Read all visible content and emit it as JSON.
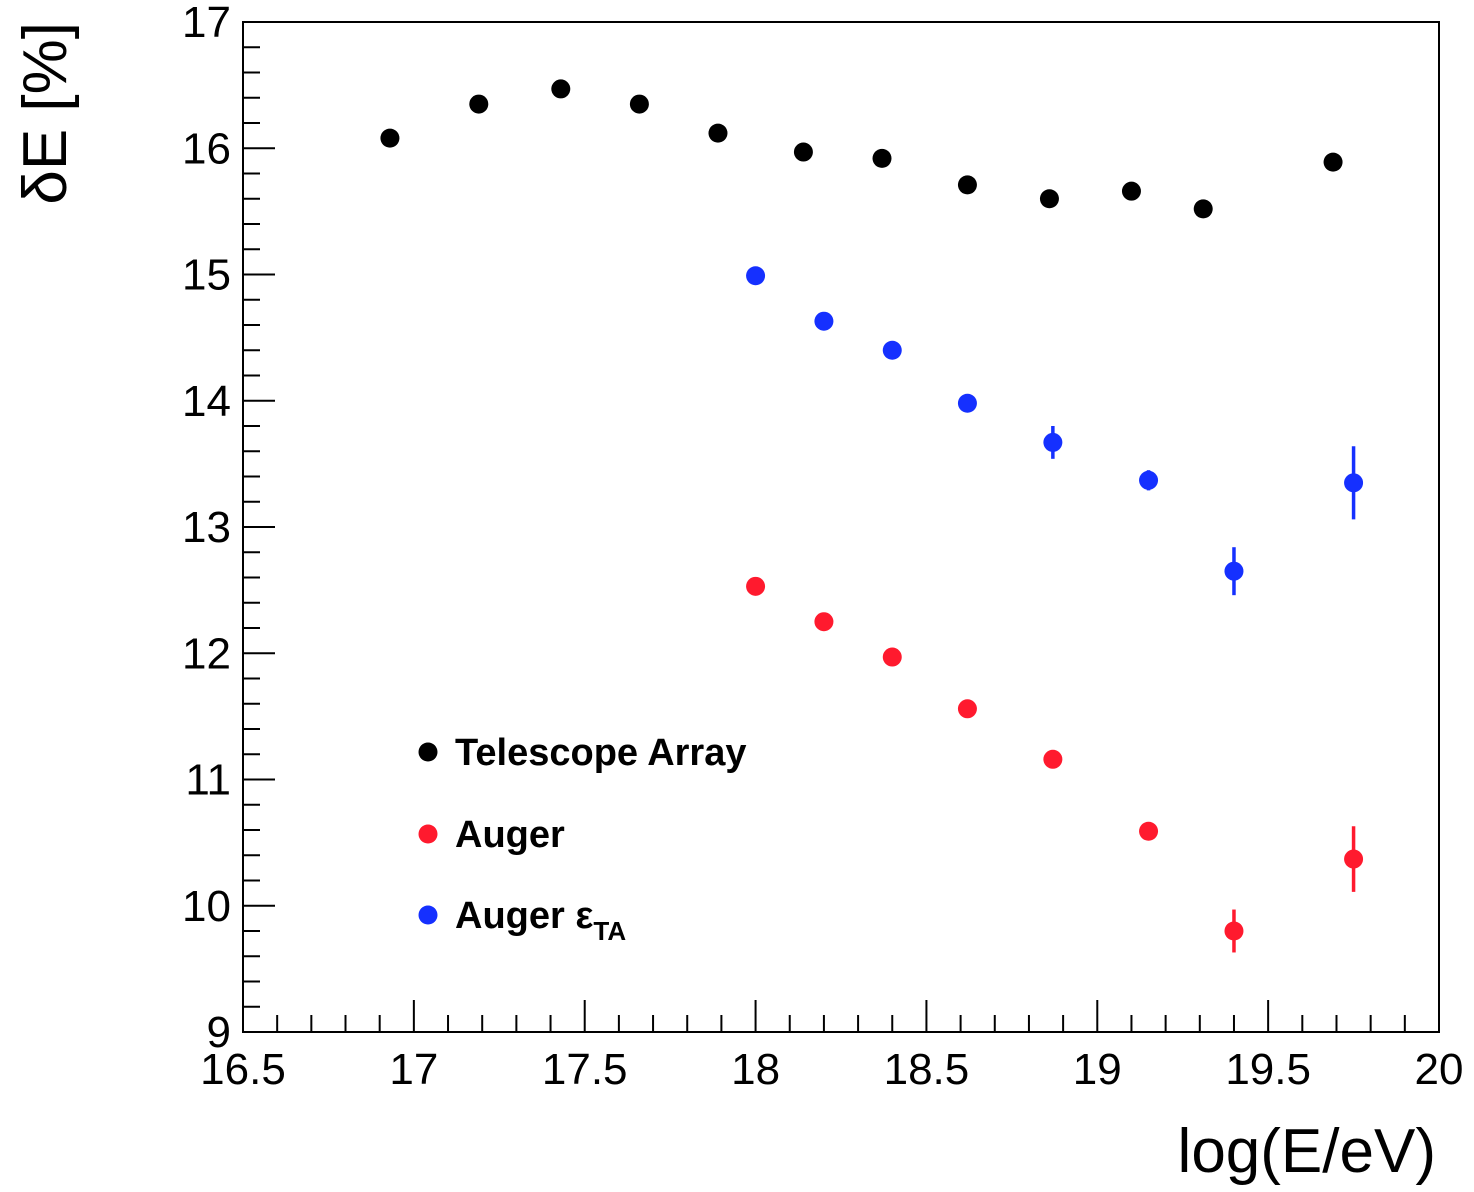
{
  "chart_data": {
    "type": "scatter",
    "title": "",
    "xlabel": "log(E/eV)",
    "ylabel": "δE [%]",
    "xlim": [
      16.5,
      20
    ],
    "ylim": [
      9,
      17
    ],
    "x_tick_labels": [
      "16.5",
      "17",
      "17.5",
      "18",
      "18.5",
      "19",
      "19.5",
      "20"
    ],
    "y_tick_labels": [
      "9",
      "10",
      "11",
      "12",
      "13",
      "14",
      "15",
      "16",
      "17"
    ],
    "grid": false,
    "legend_position": "bottom-left",
    "series": [
      {
        "name": "Telescope Array",
        "legend_label": "Telescope Array",
        "color": "#000000",
        "x": [
          16.93,
          17.19,
          17.43,
          17.66,
          17.89,
          18.14,
          18.37,
          18.62,
          18.86,
          19.1,
          19.31,
          19.69
        ],
        "y": [
          16.08,
          16.35,
          16.47,
          16.35,
          16.12,
          15.97,
          15.92,
          15.71,
          15.6,
          15.66,
          15.52,
          15.89
        ],
        "err": [
          0,
          0,
          0,
          0,
          0,
          0,
          0,
          0,
          0,
          0,
          0,
          0
        ]
      },
      {
        "name": "Auger",
        "legend_label": "Auger",
        "color": "#ff1a2e",
        "x": [
          18.0,
          18.2,
          18.4,
          18.62,
          18.87,
          19.15,
          19.4,
          19.75
        ],
        "y": [
          12.53,
          12.25,
          11.97,
          11.56,
          11.16,
          10.59,
          9.8,
          10.37
        ],
        "err": [
          0,
          0,
          0,
          0,
          0,
          0,
          0.17,
          0.26
        ]
      },
      {
        "name": "Auger εTA",
        "legend_label": "Auger ε",
        "legend_sub": "TA",
        "color": "#1530ff",
        "x": [
          18.0,
          18.2,
          18.4,
          18.62,
          18.87,
          19.15,
          19.4,
          19.75
        ],
        "y": [
          14.99,
          14.63,
          14.4,
          13.98,
          13.67,
          13.37,
          12.65,
          13.35
        ],
        "err": [
          0,
          0,
          0,
          0,
          0.13,
          0.08,
          0.19,
          0.29
        ]
      }
    ]
  }
}
